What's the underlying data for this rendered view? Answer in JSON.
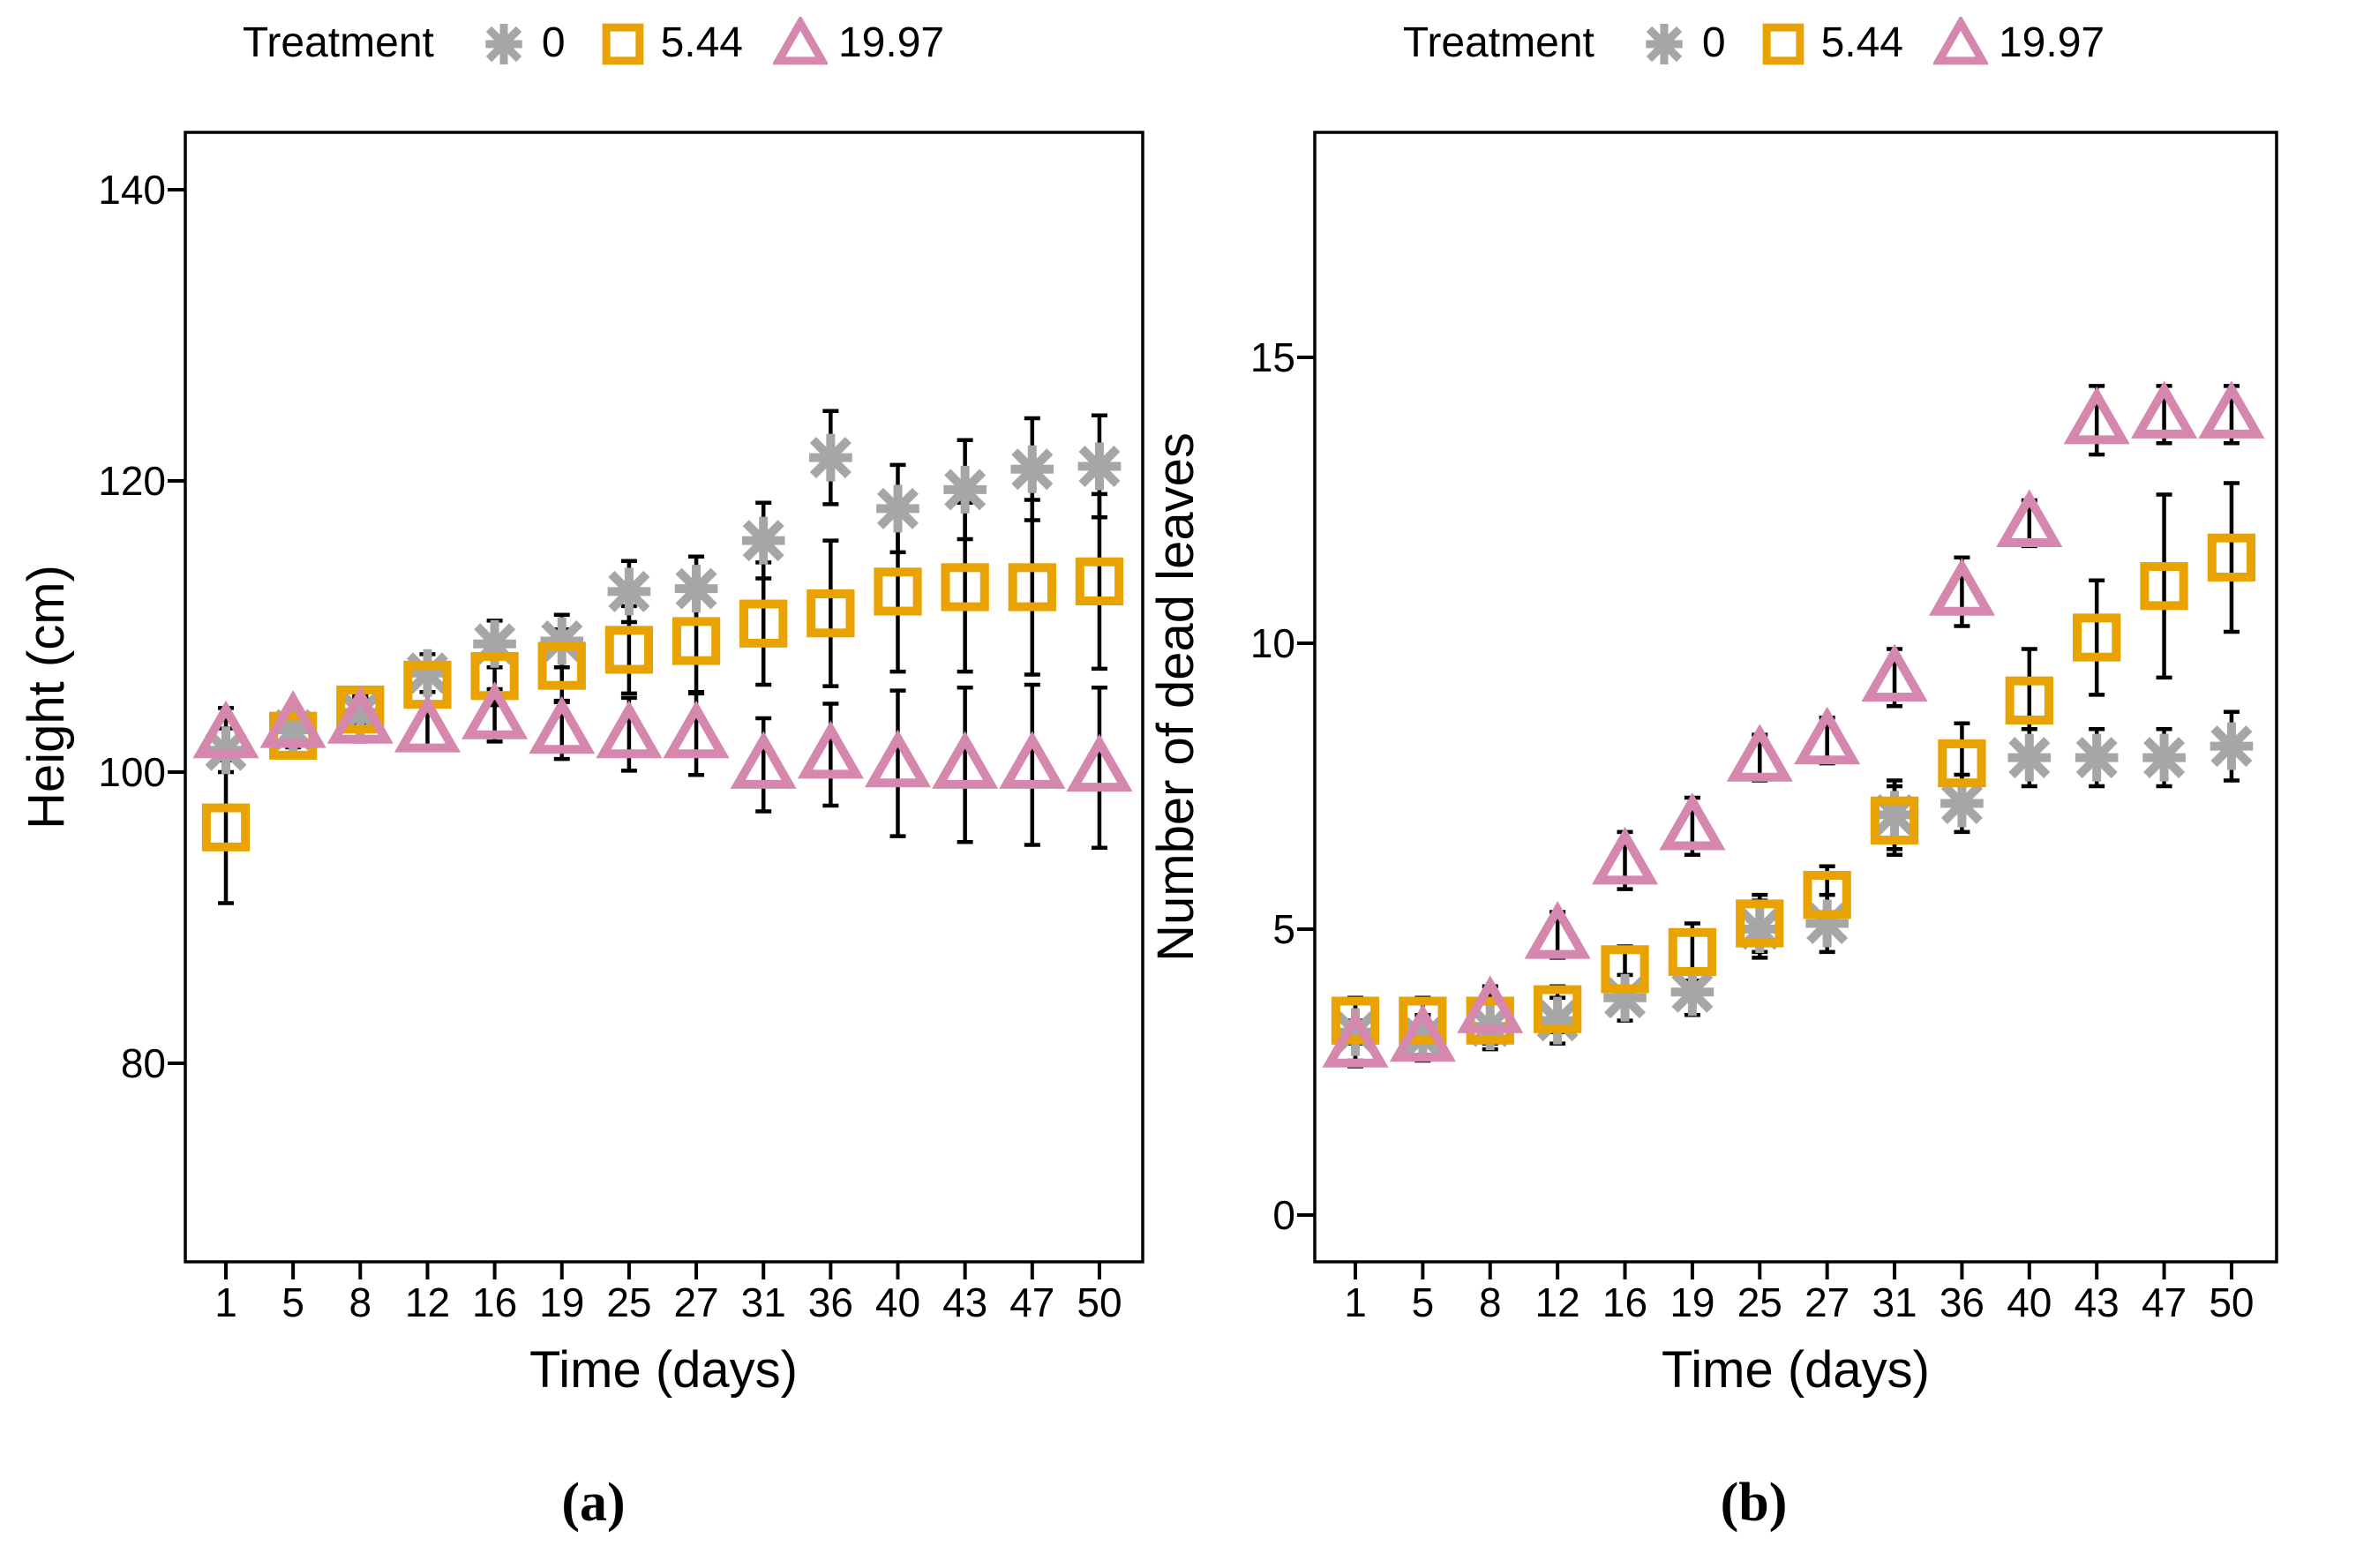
{
  "figure": {
    "legend_title": "Treatment",
    "captions": [
      "(a)",
      "(b)"
    ],
    "colors": {
      "treatment_0": "#a6a6a6",
      "treatment_544": "#e8a202",
      "treatment_1997": "#d687ae",
      "axis": "#000000"
    },
    "legend_entries": [
      {
        "label": "0",
        "marker": "asterisk",
        "color": "#a6a6a6"
      },
      {
        "label": "5.44",
        "marker": "square-open",
        "color": "#e8a202"
      },
      {
        "label": "19.97",
        "marker": "triangle-open",
        "color": "#d687ae"
      }
    ]
  },
  "chart_data": [
    {
      "id": "panel-a",
      "type": "scatter",
      "caption": "(a)",
      "xlabel": "Time (days)",
      "ylabel": "Height (cm)",
      "categories": [
        1,
        5,
        8,
        12,
        16,
        19,
        25,
        27,
        31,
        36,
        40,
        43,
        47,
        50
      ],
      "ylim": [
        66,
        144
      ],
      "yticks": [
        80,
        100,
        120,
        140
      ],
      "grid": false,
      "legend_position": "top",
      "series": [
        {
          "name": "0",
          "marker": "asterisk",
          "color": "#a6a6a6",
          "values": [
            101.5,
            102.9,
            104.1,
            106.8,
            108.8,
            109.0,
            112.4,
            112.6,
            115.9,
            121.6,
            118.1,
            119.4,
            120.8,
            121.0
          ],
          "errors": [
            1.5,
            1.2,
            1.0,
            1.3,
            1.6,
            1.8,
            2.1,
            2.2,
            2.6,
            3.2,
            3.0,
            3.4,
            3.5,
            3.5
          ]
        },
        {
          "name": "5.44",
          "marker": "square-open",
          "color": "#e8a202",
          "values": [
            96.2,
            102.5,
            104.3,
            106.0,
            106.6,
            107.3,
            108.4,
            109.0,
            110.2,
            110.9,
            112.4,
            112.7,
            112.7,
            113.1
          ],
          "errors": [
            5.2,
            1.3,
            1.0,
            1.5,
            2.0,
            2.5,
            3.0,
            3.5,
            4.2,
            5.0,
            5.5,
            5.8,
            6.0,
            6.0
          ]
        },
        {
          "name": "19.97",
          "marker": "triangle-open",
          "color": "#d687ae",
          "values": [
            102.6,
            103.3,
            103.6,
            103.0,
            103.9,
            102.9,
            102.6,
            102.6,
            100.5,
            101.2,
            100.6,
            100.5,
            100.5,
            100.3
          ],
          "errors": [
            1.8,
            1.2,
            1.5,
            1.5,
            1.8,
            2.0,
            2.5,
            2.8,
            3.2,
            3.5,
            5.0,
            5.3,
            5.5,
            5.5
          ]
        }
      ]
    },
    {
      "id": "panel-b",
      "type": "scatter",
      "caption": "(b)",
      "xlabel": "Time (days)",
      "ylabel": "Number of dead leaves",
      "categories": [
        1,
        5,
        8,
        12,
        16,
        19,
        25,
        27,
        31,
        36,
        40,
        43,
        47,
        50
      ],
      "ylim": [
        -0.8,
        18.9
      ],
      "yticks": [
        0,
        5,
        10,
        15
      ],
      "grid": false,
      "legend_position": "top",
      "series": [
        {
          "name": "0",
          "marker": "asterisk",
          "color": "#a6a6a6",
          "values": [
            3.2,
            3.1,
            3.3,
            3.4,
            3.8,
            3.9,
            5.0,
            5.1,
            7.0,
            7.2,
            8.0,
            8.0,
            8.0,
            8.2
          ],
          "errors": [
            0.5,
            0.4,
            0.4,
            0.4,
            0.4,
            0.4,
            0.5,
            0.5,
            0.6,
            0.5,
            0.5,
            0.5,
            0.5,
            0.6
          ]
        },
        {
          "name": "5.44",
          "marker": "square-open",
          "color": "#e8a202",
          "values": [
            3.4,
            3.4,
            3.4,
            3.6,
            4.3,
            4.6,
            5.1,
            5.6,
            6.9,
            7.9,
            9.0,
            10.1,
            11.0,
            11.5
          ],
          "errors": [
            0.4,
            0.4,
            0.4,
            0.4,
            0.4,
            0.5,
            0.5,
            0.5,
            0.6,
            0.7,
            0.9,
            1.0,
            1.6,
            1.3
          ]
        },
        {
          "name": "19.97",
          "marker": "triangle-open",
          "color": "#d687ae",
          "values": [
            3.0,
            3.1,
            3.6,
            4.9,
            6.2,
            6.8,
            8.0,
            8.3,
            9.4,
            10.9,
            12.1,
            13.9,
            14.0,
            14.0
          ],
          "errors": [
            0.4,
            0.3,
            0.4,
            0.4,
            0.5,
            0.5,
            0.4,
            0.4,
            0.5,
            0.6,
            0.4,
            0.6,
            0.5,
            0.5
          ]
        }
      ]
    }
  ]
}
